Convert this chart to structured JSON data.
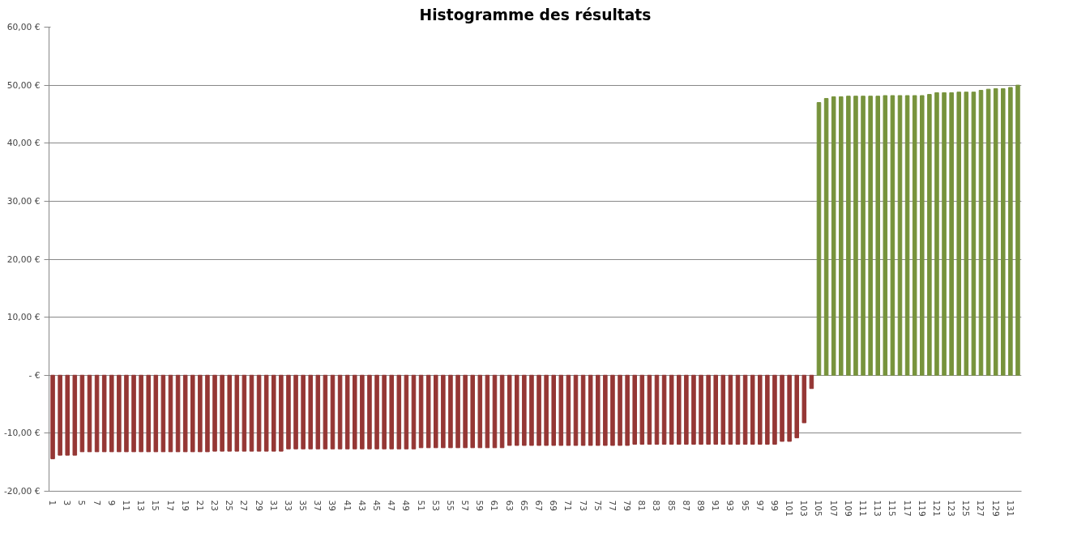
{
  "chart_data": {
    "type": "bar",
    "title": "Histogramme des résultats",
    "categories": [
      "1",
      null,
      "3",
      null,
      "5",
      null,
      "7",
      null,
      "9",
      null,
      "11",
      null,
      "13",
      null,
      "15",
      null,
      "17",
      null,
      "19",
      null,
      "21",
      null,
      "23",
      null,
      "25",
      null,
      "27",
      null,
      "29",
      null,
      "31",
      null,
      "33",
      null,
      "35",
      null,
      "37",
      null,
      "39",
      null,
      "41",
      null,
      "43",
      null,
      "45",
      null,
      "47",
      null,
      "49",
      null,
      "51",
      null,
      "53",
      null,
      "55",
      null,
      "57",
      null,
      "59",
      null,
      "61",
      null,
      "63",
      null,
      "65",
      null,
      "67",
      null,
      "69",
      null,
      "71",
      null,
      "73",
      null,
      "75",
      null,
      "77",
      null,
      "79",
      null,
      "81",
      null,
      "83",
      null,
      "85",
      null,
      "87",
      null,
      "89",
      null,
      "91",
      null,
      "93",
      null,
      "95",
      null,
      "97",
      null,
      "99",
      null,
      "101",
      null,
      "103",
      null,
      "105",
      null,
      "107",
      null,
      "109",
      null,
      "111",
      null,
      "113",
      null,
      "115",
      null,
      "117",
      null,
      "119",
      null,
      "121",
      null,
      "123",
      null,
      "125",
      null,
      "127",
      null,
      "129",
      null,
      "131",
      null
    ],
    "values": [
      -14.4,
      -13.8,
      -13.8,
      -13.8,
      -13.2,
      -13.2,
      -13.2,
      -13.2,
      -13.2,
      -13.2,
      -13.2,
      -13.2,
      -13.2,
      -13.2,
      -13.2,
      -13.2,
      -13.2,
      -13.2,
      -13.2,
      -13.2,
      -13.2,
      -13.2,
      -13.1,
      -13.1,
      -13.1,
      -13.1,
      -13.1,
      -13.1,
      -13.1,
      -13.1,
      -13.1,
      -13.1,
      -12.7,
      -12.7,
      -12.7,
      -12.7,
      -12.7,
      -12.7,
      -12.7,
      -12.7,
      -12.7,
      -12.7,
      -12.7,
      -12.7,
      -12.7,
      -12.7,
      -12.7,
      -12.7,
      -12.7,
      -12.7,
      -12.5,
      -12.5,
      -12.5,
      -12.5,
      -12.5,
      -12.5,
      -12.5,
      -12.5,
      -12.5,
      -12.5,
      -12.5,
      -12.5,
      -12.1,
      -12.1,
      -12.1,
      -12.1,
      -12.1,
      -12.1,
      -12.1,
      -12.1,
      -12.1,
      -12.1,
      -12.1,
      -12.1,
      -12.1,
      -12.1,
      -12.1,
      -12.1,
      -12.1,
      -11.9,
      -11.9,
      -11.9,
      -11.9,
      -11.9,
      -11.9,
      -11.9,
      -11.9,
      -11.9,
      -11.9,
      -11.9,
      -11.9,
      -11.9,
      -11.9,
      -11.9,
      -11.9,
      -11.9,
      -11.9,
      -11.9,
      -11.9,
      -11.4,
      -11.4,
      -10.8,
      -8.2,
      -2.3,
      47.0,
      47.7,
      48.0,
      48.0,
      48.1,
      48.1,
      48.1,
      48.1,
      48.1,
      48.2,
      48.2,
      48.2,
      48.2,
      48.2,
      48.2,
      48.4,
      48.7,
      48.7,
      48.7,
      48.8,
      48.8,
      48.8,
      49.1,
      49.3,
      49.4,
      49.4,
      49.6,
      50.0
    ],
    "colors": [
      "#953735",
      "#953735",
      "#953735",
      "#953735",
      "#953735",
      "#953735",
      "#953735",
      "#953735",
      "#953735",
      "#953735",
      "#953735",
      "#953735",
      "#953735",
      "#953735",
      "#953735",
      "#953735",
      "#953735",
      "#953735",
      "#953735",
      "#953735",
      "#953735",
      "#953735",
      "#953735",
      "#953735",
      "#953735",
      "#953735",
      "#953735",
      "#953735",
      "#953735",
      "#953735",
      "#953735",
      "#953735",
      "#953735",
      "#953735",
      "#953735",
      "#953735",
      "#953735",
      "#953735",
      "#953735",
      "#953735",
      "#953735",
      "#953735",
      "#953735",
      "#953735",
      "#953735",
      "#953735",
      "#953735",
      "#953735",
      "#953735",
      "#953735",
      "#953735",
      "#953735",
      "#953735",
      "#953735",
      "#953735",
      "#953735",
      "#953735",
      "#953735",
      "#953735",
      "#953735",
      "#953735",
      "#953735",
      "#953735",
      "#953735",
      "#953735",
      "#953735",
      "#953735",
      "#953735",
      "#953735",
      "#953735",
      "#953735",
      "#953735",
      "#953735",
      "#953735",
      "#953735",
      "#953735",
      "#953735",
      "#953735",
      "#953735",
      "#953735",
      "#953735",
      "#953735",
      "#953735",
      "#953735",
      "#953735",
      "#953735",
      "#953735",
      "#953735",
      "#953735",
      "#953735",
      "#953735",
      "#953735",
      "#953735",
      "#953735",
      "#953735",
      "#953735",
      "#953735",
      "#953735",
      "#953735",
      "#953735",
      "#953735",
      "#953735",
      "#953735",
      "#953735",
      "#77933c",
      "#77933c",
      "#77933c",
      "#77933c",
      "#77933c",
      "#77933c",
      "#77933c",
      "#77933c",
      "#77933c",
      "#77933c",
      "#77933c",
      "#77933c",
      "#77933c",
      "#77933c",
      "#77933c",
      "#77933c",
      "#77933c",
      "#77933c",
      "#77933c",
      "#77933c",
      "#77933c",
      "#77933c",
      "#77933c",
      "#77933c",
      "#77933c",
      "#77933c",
      "#77933c",
      "#77933c"
    ],
    "ylim": [
      -20,
      60
    ],
    "yticks": [
      {
        "value": -20,
        "label": "-20,00 €"
      },
      {
        "value": -10,
        "label": "-10,00 €"
      },
      {
        "value": 0,
        "label": "- €"
      },
      {
        "value": 10,
        "label": "10,00 €"
      },
      {
        "value": 20,
        "label": "20,00 €"
      },
      {
        "value": 30,
        "label": "30,00 €"
      },
      {
        "value": 40,
        "label": "40,00 €"
      },
      {
        "value": 50,
        "label": "50,00 €"
      },
      {
        "value": 60,
        "label": "60,00 €"
      }
    ],
    "grid": "y"
  }
}
